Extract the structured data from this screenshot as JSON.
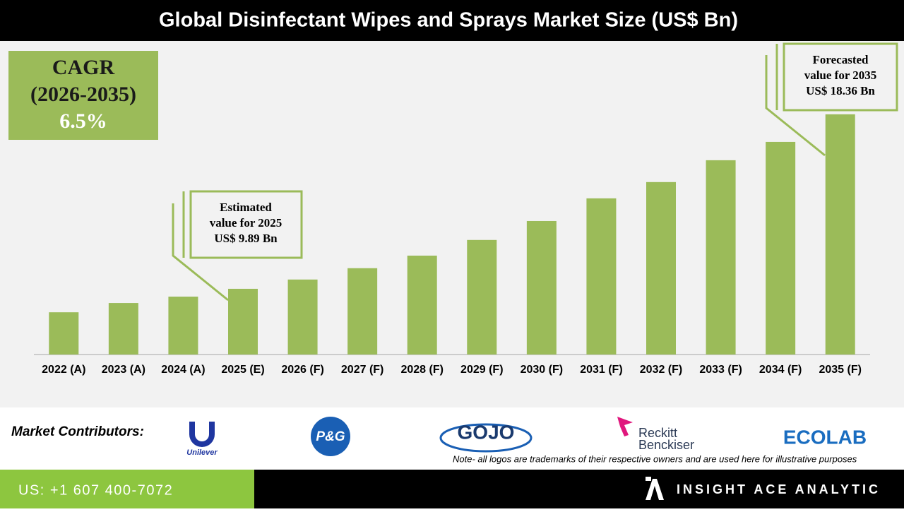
{
  "chart_data": {
    "type": "bar",
    "title": "Global Disinfectant Wipes and Sprays Market Size (US$ Bn)",
    "categories": [
      "2022 (A)",
      "2023 (A)",
      "2024 (A)",
      "2025 (E)",
      "2026 (F)",
      "2027 (F)",
      "2028 (F)",
      "2029 (F)",
      "2030 (F)",
      "2031 (F)",
      "2032 (F)",
      "2033 (F)",
      "2034 (F)",
      "2035 (F)"
    ],
    "values": [
      8.75,
      9.2,
      9.51,
      9.89,
      10.34,
      10.89,
      11.5,
      12.26,
      13.18,
      14.28,
      15.07,
      16.13,
      17.02,
      18.36
    ],
    "color": "#9bbb59",
    "ylim": [
      6.7,
      20
    ],
    "cagr": {
      "lines": [
        "CAGR",
        "(2026-2035)",
        "6.5%"
      ]
    },
    "annotations": [
      {
        "lines": [
          "Estimated",
          "value for 2025",
          "US$ 9.89 Bn"
        ]
      },
      {
        "lines": [
          "Forecasted",
          "value for 2035",
          "US$ 18.36 Bn"
        ]
      }
    ]
  },
  "footer": {
    "label": "Market Contributors:",
    "logos": [
      "Unilever",
      "P&G",
      "GOJO",
      "Reckitt",
      "Benckiser",
      "ECOLAB"
    ],
    "note": "Note- all logos are trademarks of their respective owners and are used here for illustrative purposes",
    "phone": "US: +1 607 400-7072",
    "company": "INSIGHT ACE ANALYTIC"
  }
}
